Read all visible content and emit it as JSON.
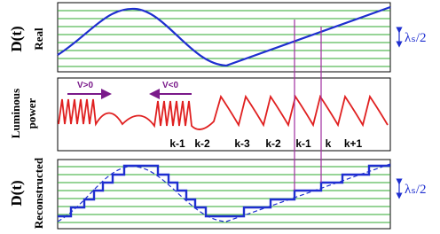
{
  "panels": [
    {
      "axis_label": "D(t)",
      "label": "Real",
      "annotation": "λₛ/2"
    },
    {
      "label_lines": [
        "Luminous",
        "power"
      ],
      "arrows": [
        "V>0",
        "V<0"
      ],
      "fringes": [
        "k-1",
        "k-2",
        "k-3",
        "k-2",
        "k-1",
        "k",
        "k+1"
      ]
    },
    {
      "axis_label": "D(t)",
      "label": "Reconstructed",
      "annotation": "λₛ/2"
    }
  ]
}
